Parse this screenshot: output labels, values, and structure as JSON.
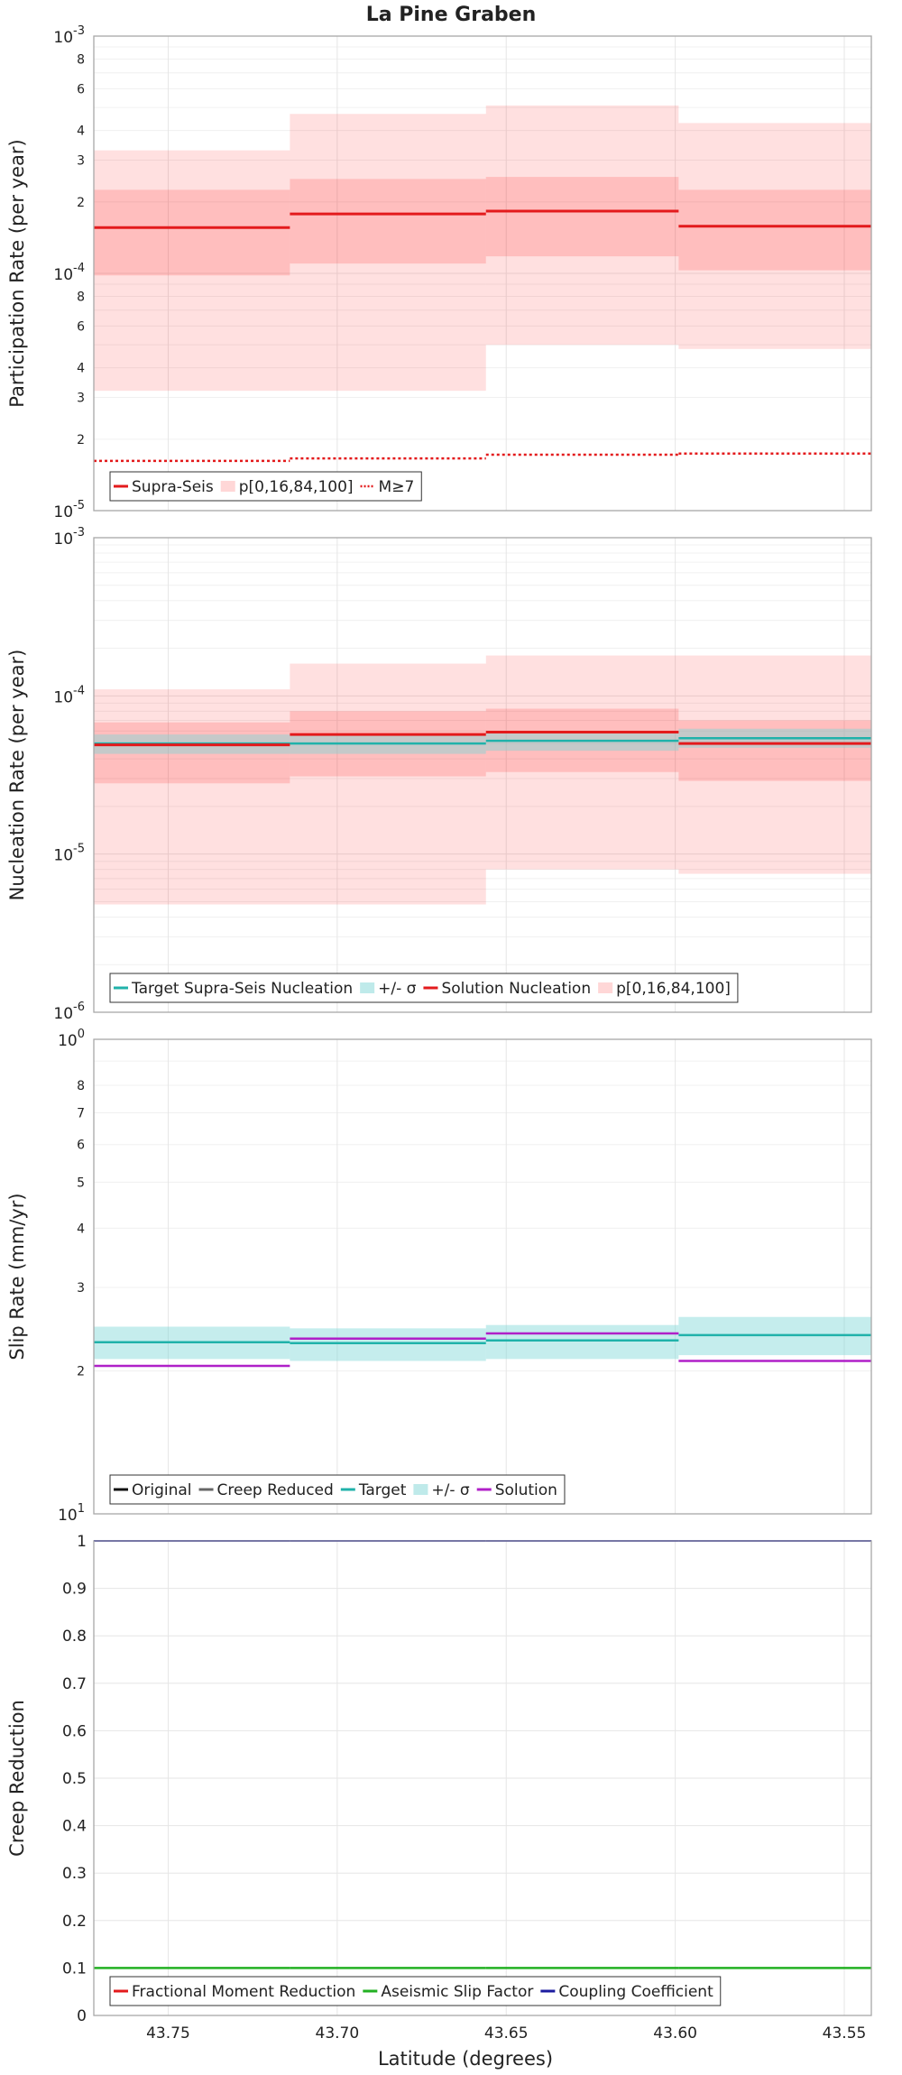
{
  "chart_data": {
    "title": "La Pine Graben",
    "xlabel": "Latitude (degrees)",
    "x_ticks": [
      43.75,
      43.7,
      43.65,
      43.6,
      43.55
    ],
    "x_tick_labels": [
      "43.75",
      "43.70",
      "43.65",
      "43.60",
      "43.55"
    ],
    "xlim": [
      43.772,
      43.542
    ],
    "x_reversed": true,
    "bins": [
      [
        43.772,
        43.714
      ],
      [
        43.714,
        43.656
      ],
      [
        43.656,
        43.599
      ],
      [
        43.599,
        43.542
      ]
    ],
    "panels": [
      {
        "type": "line",
        "ylabel": "Participation Rate (per year)",
        "yscale": "log",
        "ylim": [
          1e-05,
          0.001
        ],
        "y_decade_labels": [
          {
            "base": "10",
            "exp": "-5"
          },
          {
            "base": "10",
            "exp": "-4"
          },
          {
            "base": "10",
            "exp": "-3"
          }
        ],
        "y_minor_labels": [
          {
            "v": 2e-05,
            "t": "2"
          },
          {
            "v": 3e-05,
            "t": "3"
          },
          {
            "v": 4e-05,
            "t": "4"
          },
          {
            "v": 6e-05,
            "t": "6"
          },
          {
            "v": 8e-05,
            "t": "8"
          },
          {
            "v": 0.0002,
            "t": "2"
          },
          {
            "v": 0.0003,
            "t": "3"
          },
          {
            "v": 0.0004,
            "t": "4"
          },
          {
            "v": 0.0006,
            "t": "6"
          },
          {
            "v": 0.0008,
            "t": "8"
          }
        ],
        "bands": [
          {
            "color": "#ff0000",
            "alpha": 0.12,
            "lower": [
              3.2e-05,
              3.2e-05,
              5e-05,
              4.8e-05
            ],
            "upper": [
              0.00033,
              0.00047,
              0.00051,
              0.00043
            ]
          },
          {
            "color": "#ff0000",
            "alpha": 0.15,
            "lower": [
              9.8e-05,
              0.00011,
              0.000118,
              0.000103
            ],
            "upper": [
              0.000225,
              0.00025,
              0.000255,
              0.000225
            ]
          }
        ],
        "series": [
          {
            "name": "Supra-Seis",
            "color": "#e31a1c",
            "width": 3,
            "dash": "",
            "values": [
              0.000156,
              0.000178,
              0.000183,
              0.000158
            ]
          },
          {
            "name": "M≥7",
            "color": "#e31a1c",
            "width": 2.5,
            "dash": "3,3",
            "values": [
              1.62e-05,
              1.66e-05,
              1.72e-05,
              1.74e-05
            ]
          }
        ],
        "legend": [
          {
            "kind": "line",
            "color": "#e31a1c",
            "label": "Supra-Seis"
          },
          {
            "kind": "box",
            "color": "#ffd7d7",
            "label": "p[0,16,84,100]"
          },
          {
            "kind": "dot",
            "color": "#e31a1c",
            "label": "M≥7"
          }
        ]
      },
      {
        "type": "line",
        "ylabel": "Nucleation Rate (per year)",
        "yscale": "log",
        "ylim": [
          1e-06,
          0.001
        ],
        "y_decade_labels": [
          {
            "base": "10",
            "exp": "-6"
          },
          {
            "base": "10",
            "exp": "-5"
          },
          {
            "base": "10",
            "exp": "-4"
          },
          {
            "base": "10",
            "exp": "-3"
          }
        ],
        "y_minor_labels": [],
        "bands": [
          {
            "color": "#ff0000",
            "alpha": 0.12,
            "lower": [
              4.8e-06,
              4.8e-06,
              8e-06,
              7.5e-06
            ],
            "upper": [
              0.00011,
              0.00016,
              0.00018,
              0.00018
            ]
          },
          {
            "color": "#ff0000",
            "alpha": 0.15,
            "lower": [
              2.8e-05,
              3.1e-05,
              3.3e-05,
              2.9e-05
            ],
            "upper": [
              6.8e-05,
              8e-05,
              8.3e-05,
              7e-05
            ]
          },
          {
            "color": "#7fd6d6",
            "alpha": 0.45,
            "lower": [
              4.3e-05,
              4.3e-05,
              4.5e-05,
              4.7e-05
            ],
            "upper": [
              5.7e-05,
              5.7e-05,
              6e-05,
              6.2e-05
            ]
          }
        ],
        "series": [
          {
            "name": "Target Supra-Seis Nucleation",
            "color": "#20b2aa",
            "width": 2.5,
            "dash": "",
            "values": [
              5e-05,
              5e-05,
              5.2e-05,
              5.4e-05
            ]
          },
          {
            "name": "Solution Nucleation",
            "color": "#e31a1c",
            "width": 3,
            "dash": "",
            "values": [
              4.9e-05,
              5.7e-05,
              5.9e-05,
              5e-05
            ]
          }
        ],
        "legend": [
          {
            "kind": "line",
            "color": "#20b2aa",
            "label": "Target Supra-Seis Nucleation"
          },
          {
            "kind": "box",
            "color": "#bfeaea",
            "label": "+/- σ"
          },
          {
            "kind": "line",
            "color": "#e31a1c",
            "label": "Solution Nucleation"
          },
          {
            "kind": "box",
            "color": "#ffd7d7",
            "label": "p[0,16,84,100]"
          }
        ]
      },
      {
        "type": "line",
        "ylabel": "Slip Rate (mm/yr)",
        "yscale": "log",
        "ylim": [
          1,
          10
        ],
        "y_decade_labels": [
          {
            "base": "10",
            "exp": "1"
          },
          {
            "base": "10",
            "exp": "0"
          }
        ],
        "y_decade_values": [
          1,
          10
        ],
        "y_minor_labels": [
          {
            "v": 2,
            "t": "2"
          },
          {
            "v": 3,
            "t": "3"
          },
          {
            "v": 4,
            "t": "4"
          },
          {
            "v": 5,
            "t": "5"
          },
          {
            "v": 6,
            "t": "6"
          },
          {
            "v": 7,
            "t": "7"
          },
          {
            "v": 8,
            "t": "8"
          }
        ],
        "bands": [
          {
            "color": "#7fd6d6",
            "alpha": 0.45,
            "lower": [
              2.12,
              2.1,
              2.12,
              2.16
            ],
            "upper": [
              2.48,
              2.46,
              2.5,
              2.6
            ]
          }
        ],
        "series": [
          {
            "name": "Target",
            "color": "#20b2aa",
            "width": 2.5,
            "dash": "",
            "values": [
              2.3,
              2.29,
              2.32,
              2.38
            ]
          },
          {
            "name": "Solution",
            "color": "#b020c8",
            "width": 2.5,
            "dash": "",
            "values": [
              2.05,
              2.34,
              2.4,
              2.1
            ]
          }
        ],
        "legend": [
          {
            "kind": "line",
            "color": "#111111",
            "label": "Original"
          },
          {
            "kind": "line",
            "color": "#666666",
            "label": "Creep Reduced"
          },
          {
            "kind": "line",
            "color": "#20b2aa",
            "label": "Target"
          },
          {
            "kind": "box",
            "color": "#bfeaea",
            "label": "+/- σ"
          },
          {
            "kind": "line",
            "color": "#b020c8",
            "label": "Solution"
          }
        ]
      },
      {
        "type": "line",
        "ylabel": "Creep Reduction",
        "yscale": "linear",
        "ylim": [
          0,
          1
        ],
        "y_ticks": [
          0,
          0.1,
          0.2,
          0.3,
          0.4,
          0.5,
          0.6,
          0.7,
          0.8,
          0.9,
          1
        ],
        "y_tick_labels": [
          "0",
          "0.1",
          "0.2",
          "0.3",
          "0.4",
          "0.5",
          "0.6",
          "0.7",
          "0.8",
          "0.9",
          "1"
        ],
        "bands": [],
        "series": [
          {
            "name": "Aseismic Slip Factor",
            "color": "#22b022",
            "width": 2.5,
            "dash": "",
            "values": [
              0.1,
              0.1,
              0.1,
              0.1
            ]
          },
          {
            "name": "Coupling Coefficient",
            "color": "#1c1ca0",
            "width": 2,
            "dash": "",
            "values": [
              1,
              1,
              1,
              1
            ]
          }
        ],
        "legend": [
          {
            "kind": "line",
            "color": "#e31a1c",
            "label": "Fractional Moment Reduction"
          },
          {
            "kind": "line",
            "color": "#22b022",
            "label": "Aseismic Slip Factor"
          },
          {
            "kind": "line",
            "color": "#1c1ca0",
            "label": "Coupling Coefficient"
          }
        ]
      }
    ]
  }
}
